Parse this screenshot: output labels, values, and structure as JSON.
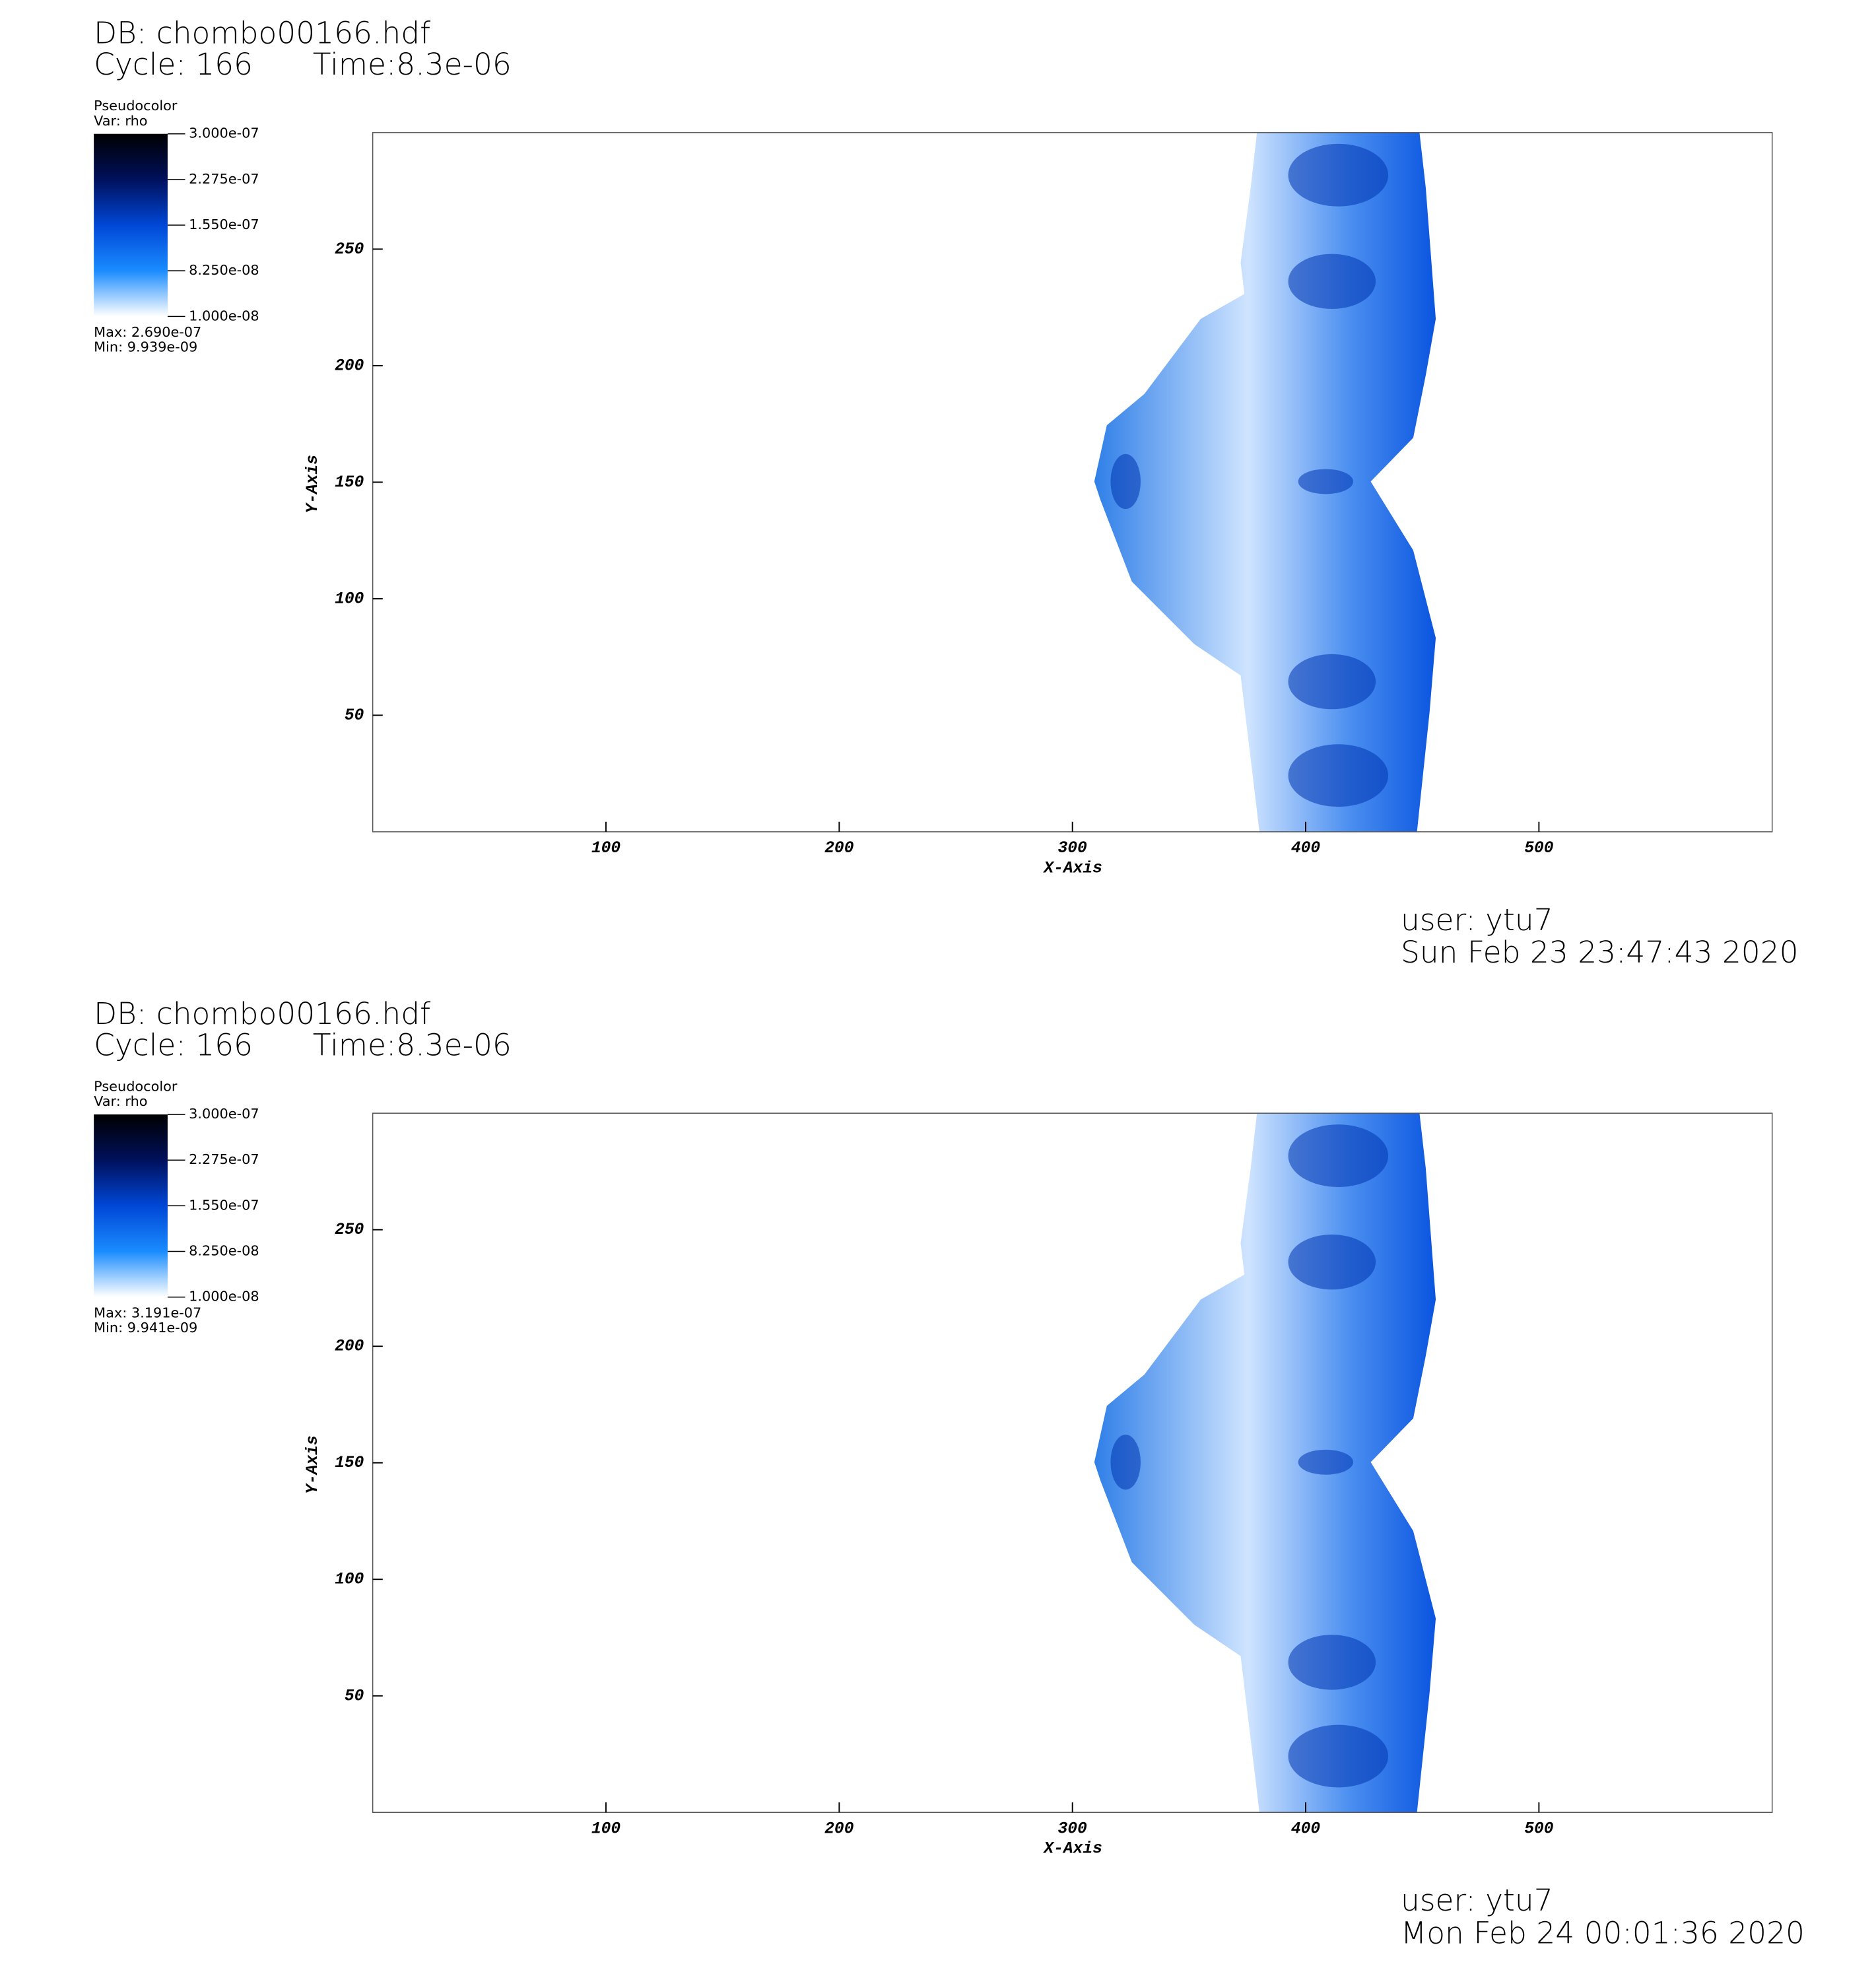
{
  "chart_data": [
    {
      "type": "pseudocolor",
      "title": "DB: chombo00166.hdf",
      "cycle": "Cycle: 166",
      "time": "Time:8.3e-06",
      "legend_title": "Pseudocolor",
      "legend_variable": "Var: rho",
      "clim": [
        1e-08,
        3e-07
      ],
      "colorbar_ticks": [
        {
          "value": 3e-07,
          "label": "3.000e-07"
        },
        {
          "value": 2.275e-07,
          "label": "2.275e-07"
        },
        {
          "value": 1.55e-07,
          "label": "1.550e-07"
        },
        {
          "value": 8.25e-08,
          "label": "8.250e-08"
        },
        {
          "value": 1e-08,
          "label": "1.000e-08"
        }
      ],
      "colormap": [
        "#ffffff",
        "#1a8cff",
        "#0047d6",
        "#00105c",
        "#000000"
      ],
      "max": "Max:  2.690e-07",
      "min": "Min:  9.939e-09",
      "xlabel": "X-Axis",
      "ylabel": "Y-Axis",
      "xlim": [
        0,
        600
      ],
      "ylim": [
        0,
        300
      ],
      "xticks": [
        100,
        200,
        300,
        400,
        500
      ],
      "yticks": [
        50,
        100,
        150,
        200,
        250
      ],
      "user": "user: ytu7",
      "timestamp": "Sun Feb 23 23:47:43 2020"
    },
    {
      "type": "pseudocolor",
      "title": "DB: chombo00166.hdf",
      "cycle": "Cycle: 166",
      "time": "Time:8.3e-06",
      "legend_title": "Pseudocolor",
      "legend_variable": "Var: rho",
      "clim": [
        1e-08,
        3e-07
      ],
      "colorbar_ticks": [
        {
          "value": 3e-07,
          "label": "3.000e-07"
        },
        {
          "value": 2.275e-07,
          "label": "2.275e-07"
        },
        {
          "value": 1.55e-07,
          "label": "1.550e-07"
        },
        {
          "value": 8.25e-08,
          "label": "8.250e-08"
        },
        {
          "value": 1e-08,
          "label": "1.000e-08"
        }
      ],
      "colormap": [
        "#ffffff",
        "#1a8cff",
        "#0047d6",
        "#00105c",
        "#000000"
      ],
      "max": "Max:  3.191e-07",
      "min": "Min:  9.941e-09",
      "xlabel": "X-Axis",
      "ylabel": "Y-Axis",
      "xlim": [
        0,
        600
      ],
      "ylim": [
        0,
        300
      ],
      "xticks": [
        100,
        200,
        300,
        400,
        500
      ],
      "yticks": [
        50,
        100,
        150,
        200,
        250
      ],
      "user": "user: ytu7",
      "timestamp": "Mon Feb 24 00:01:36 2020"
    }
  ]
}
